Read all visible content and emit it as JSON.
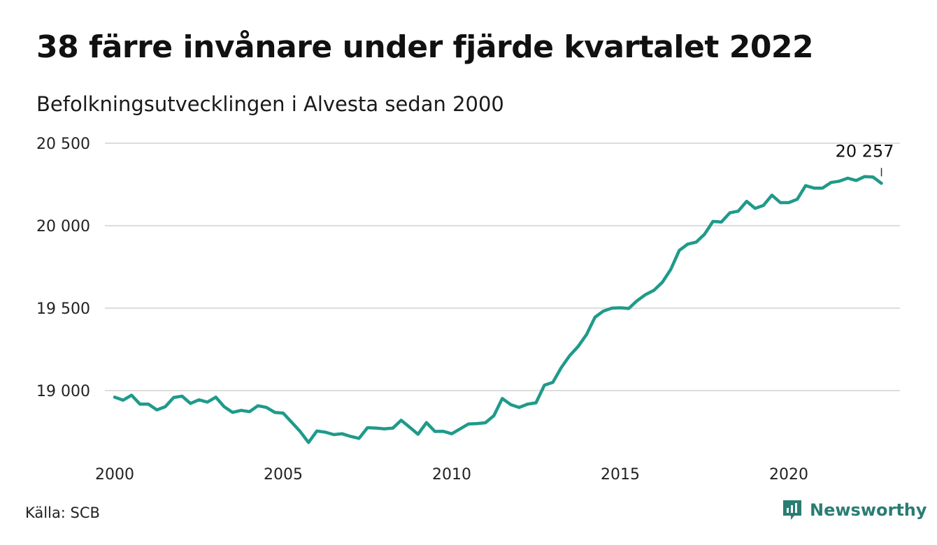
{
  "header": {
    "title": "38 färre invånare under fjärde kvartalet 2022",
    "subtitle": "Befolkningsutvecklingen i Alvesta sedan 2000"
  },
  "footer": {
    "source": "Källa: SCB",
    "brand": "Newsworthy",
    "brand_color": "#2a7d73"
  },
  "chart_data": {
    "type": "line",
    "ylim": [
      18600,
      20550
    ],
    "xlim": [
      2000,
      2024
    ],
    "y_ticks": [
      19000,
      19500,
      20000,
      20500
    ],
    "y_tick_labels": [
      "19 000",
      "19 500",
      "20 000",
      "20 500"
    ],
    "x_ticks": [
      2000,
      2005,
      2010,
      2015,
      2020
    ],
    "x_tick_labels": [
      "2000",
      "2005",
      "2010",
      "2015",
      "2020"
    ],
    "grid": true,
    "line_color": "#1f9a8a",
    "annotation": {
      "label": "20 257",
      "x": 2022.75,
      "y": 20257
    },
    "series": [
      {
        "x": [
          2000.0,
          2000.25,
          2000.5,
          2000.75,
          2001.0,
          2001.25,
          2001.5,
          2001.75,
          2002.0,
          2002.25,
          2002.5,
          2002.75,
          2003.0,
          2003.25,
          2003.5,
          2003.75,
          2004.0,
          2004.25,
          2004.5,
          2004.75,
          2005.0,
          2005.25,
          2005.5,
          2005.75,
          2006.0,
          2006.25,
          2006.5,
          2006.75,
          2007.0,
          2007.25,
          2007.5,
          2007.75,
          2008.0,
          2008.25,
          2008.5,
          2008.75,
          2009.0,
          2009.25,
          2009.5,
          2009.75,
          2010.0,
          2010.25,
          2010.5,
          2010.75,
          2011.0,
          2011.25,
          2011.5,
          2011.75,
          2012.0,
          2012.25,
          2012.5,
          2012.75,
          2013.0,
          2013.25,
          2013.5,
          2013.75,
          2014.0,
          2014.25,
          2014.5,
          2014.75,
          2015.0,
          2015.25,
          2015.5,
          2015.75,
          2016.0,
          2016.25,
          2016.5,
          2016.75,
          2017.0,
          2017.25,
          2017.5,
          2017.75,
          2018.0,
          2018.25,
          2018.5,
          2018.75,
          2019.0,
          2019.25,
          2019.5,
          2019.75,
          2020.0,
          2020.25,
          2020.5,
          2020.75,
          2021.0,
          2021.25,
          2021.5,
          2021.75,
          2022.0,
          2022.25,
          2022.5,
          2022.75
        ],
        "values": [
          18960,
          18942,
          18972,
          18918,
          18918,
          18883,
          18902,
          18958,
          18966,
          18922,
          18944,
          18930,
          18960,
          18902,
          18868,
          18880,
          18872,
          18908,
          18898,
          18868,
          18863,
          18808,
          18753,
          18685,
          18755,
          18748,
          18733,
          18738,
          18722,
          18710,
          18775,
          18773,
          18768,
          18772,
          18820,
          18778,
          18735,
          18806,
          18752,
          18753,
          18738,
          18768,
          18798,
          18800,
          18805,
          18848,
          18952,
          18915,
          18898,
          18918,
          18926,
          19033,
          19050,
          19140,
          19212,
          19268,
          19340,
          19445,
          19482,
          19500,
          19502,
          19498,
          19545,
          19582,
          19608,
          19657,
          19735,
          19850,
          19888,
          19900,
          19948,
          20026,
          20022,
          20078,
          20088,
          20148,
          20105,
          20123,
          20185,
          20140,
          20140,
          20160,
          20243,
          20228,
          20228,
          20262,
          20270,
          20288,
          20274,
          20298,
          20295,
          20257
        ]
      }
    ]
  }
}
